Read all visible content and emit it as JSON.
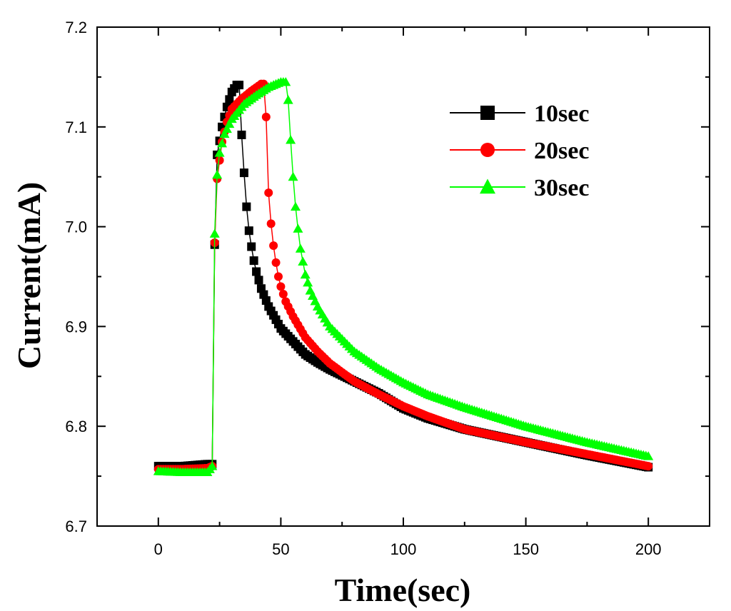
{
  "chart_data": {
    "type": "line",
    "title": "",
    "xlabel": "Time(sec)",
    "ylabel": "Current(mA)",
    "xlim": [
      -25,
      225
    ],
    "ylim": [
      6.7,
      7.2
    ],
    "xticks": [
      0,
      50,
      100,
      150,
      200
    ],
    "xtick_labels": [
      "0",
      "50",
      "100",
      "150",
      "200"
    ],
    "yticks": [
      6.7,
      6.8,
      6.9,
      7.0,
      7.1,
      7.2
    ],
    "ytick_labels": [
      "6.7",
      "6.8",
      "6.9",
      "7.0",
      "7.1",
      "7.2"
    ],
    "grid": false,
    "legend_position": "top-right",
    "series": [
      {
        "name": "10sec",
        "color": "#000000",
        "marker": "square",
        "points": [
          [
            0,
            6.76
          ],
          [
            10,
            6.76
          ],
          [
            20,
            6.762
          ],
          [
            22,
            6.762
          ],
          [
            23,
            6.982
          ],
          [
            24,
            7.072
          ],
          [
            26,
            7.1
          ],
          [
            28,
            7.12
          ],
          [
            30,
            7.135
          ],
          [
            32,
            7.142
          ],
          [
            33,
            7.142
          ],
          [
            34,
            7.092
          ],
          [
            35,
            7.054
          ],
          [
            36,
            7.02
          ],
          [
            37,
            6.996
          ],
          [
            38,
            6.98
          ],
          [
            39,
            6.966
          ],
          [
            40,
            6.955
          ],
          [
            42,
            6.938
          ],
          [
            45,
            6.92
          ],
          [
            50,
            6.898
          ],
          [
            55,
            6.885
          ],
          [
            60,
            6.872
          ],
          [
            65,
            6.864
          ],
          [
            70,
            6.857
          ],
          [
            80,
            6.845
          ],
          [
            90,
            6.833
          ],
          [
            100,
            6.818
          ],
          [
            110,
            6.808
          ],
          [
            125,
            6.797
          ],
          [
            150,
            6.784
          ],
          [
            175,
            6.771
          ],
          [
            200,
            6.759
          ]
        ]
      },
      {
        "name": "20sec",
        "color": "#ff0000",
        "marker": "circle",
        "points": [
          [
            0,
            6.757
          ],
          [
            10,
            6.757
          ],
          [
            20,
            6.758
          ],
          [
            22,
            6.76
          ],
          [
            23,
            6.984
          ],
          [
            24,
            7.048
          ],
          [
            26,
            7.085
          ],
          [
            28,
            7.105
          ],
          [
            30,
            7.118
          ],
          [
            34,
            7.128
          ],
          [
            38,
            7.136
          ],
          [
            42,
            7.143
          ],
          [
            43,
            7.143
          ],
          [
            44,
            7.11
          ],
          [
            45,
            7.034
          ],
          [
            46,
            7.003
          ],
          [
            47,
            6.981
          ],
          [
            48,
            6.964
          ],
          [
            49,
            6.95
          ],
          [
            50,
            6.94
          ],
          [
            52,
            6.925
          ],
          [
            55,
            6.91
          ],
          [
            60,
            6.889
          ],
          [
            65,
            6.875
          ],
          [
            70,
            6.863
          ],
          [
            80,
            6.845
          ],
          [
            90,
            6.832
          ],
          [
            100,
            6.82
          ],
          [
            110,
            6.81
          ],
          [
            125,
            6.797
          ],
          [
            150,
            6.784
          ],
          [
            175,
            6.772
          ],
          [
            200,
            6.76
          ]
        ]
      },
      {
        "name": "30sec",
        "color": "#00ff00",
        "marker": "triangle",
        "points": [
          [
            0,
            6.755
          ],
          [
            10,
            6.754
          ],
          [
            20,
            6.754
          ],
          [
            22,
            6.76
          ],
          [
            23,
            6.993
          ],
          [
            24,
            7.052
          ],
          [
            25,
            7.074
          ],
          [
            27,
            7.093
          ],
          [
            30,
            7.108
          ],
          [
            35,
            7.123
          ],
          [
            40,
            7.132
          ],
          [
            45,
            7.14
          ],
          [
            50,
            7.145
          ],
          [
            52,
            7.145
          ],
          [
            53,
            7.127
          ],
          [
            54,
            7.087
          ],
          [
            55,
            7.05
          ],
          [
            56,
            7.02
          ],
          [
            57,
            6.998
          ],
          [
            58,
            6.978
          ],
          [
            59,
            6.965
          ],
          [
            60,
            6.952
          ],
          [
            62,
            6.936
          ],
          [
            65,
            6.92
          ],
          [
            70,
            6.9
          ],
          [
            80,
            6.875
          ],
          [
            90,
            6.858
          ],
          [
            100,
            6.844
          ],
          [
            110,
            6.832
          ],
          [
            125,
            6.819
          ],
          [
            150,
            6.8
          ],
          [
            175,
            6.784
          ],
          [
            200,
            6.77
          ]
        ]
      }
    ]
  }
}
